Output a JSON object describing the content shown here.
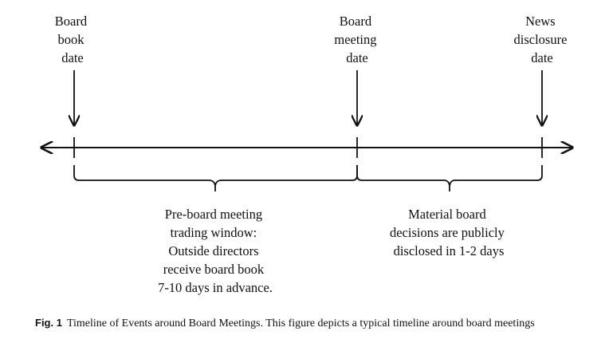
{
  "events": [
    {
      "lines": [
        "Board",
        "book",
        "date"
      ]
    },
    {
      "lines": [
        "Board",
        "meeting",
        "date"
      ]
    },
    {
      "lines": [
        "News",
        "disclosure",
        "date"
      ]
    }
  ],
  "periods": [
    {
      "lines": [
        "Pre-board meeting",
        "trading window:",
        "Outside directors",
        "receive board book",
        "7-10 days in advance."
      ]
    },
    {
      "lines": [
        "Material board",
        "decisions are publicly",
        "disclosed in 1-2 days"
      ]
    }
  ],
  "caption": {
    "label": "Fig. 1",
    "text": "Timeline of Events around Board Meetings. This figure depicts a typical timeline around board meetings"
  }
}
